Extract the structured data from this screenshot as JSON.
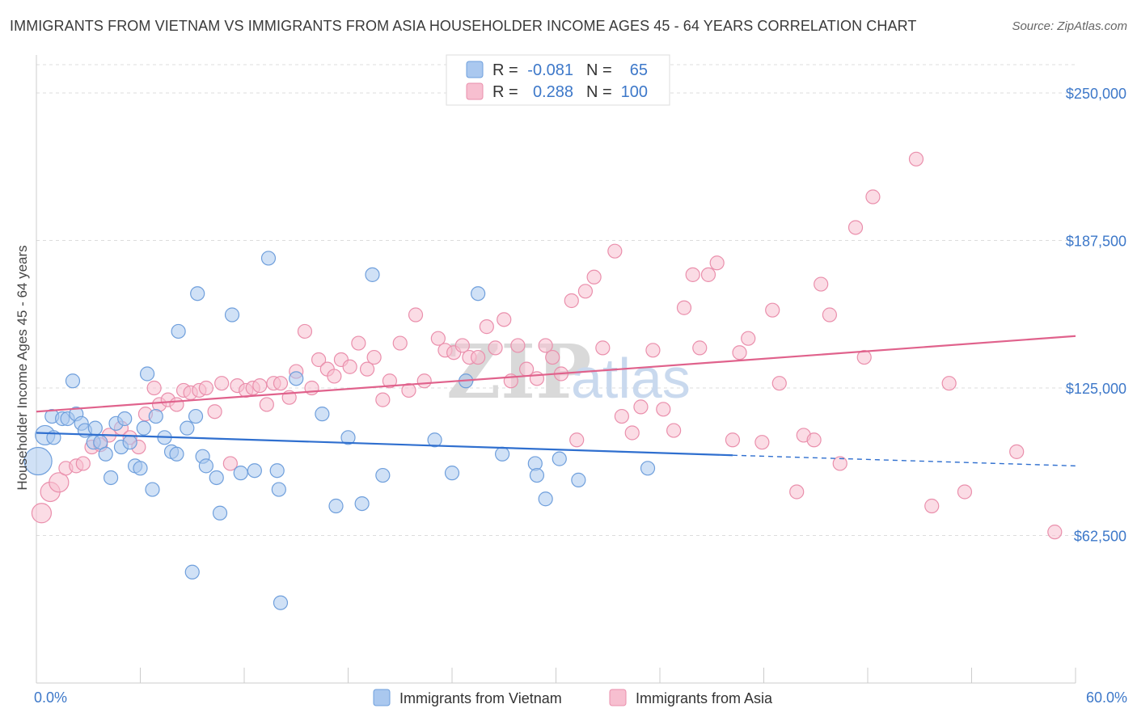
{
  "title": "IMMIGRANTS FROM VIETNAM VS IMMIGRANTS FROM ASIA HOUSEHOLDER INCOME AGES 45 - 64 YEARS CORRELATION CHART",
  "source": "Source: ZipAtlas.com",
  "watermark": {
    "zip": "ZIP",
    "atlas": "atlas"
  },
  "legend": {
    "rows": [
      {
        "r_label": "R =",
        "r_value": "-0.081",
        "n_label": "N =",
        "n_value": "65"
      },
      {
        "r_label": "R =",
        "r_value": "0.288",
        "n_label": "N =",
        "n_value": "100"
      }
    ]
  },
  "colors": {
    "vietnam_fill": "#aac8ef",
    "vietnam_stroke": "#6f9fdc",
    "vietnam_line": "#2f6fcf",
    "asia_fill": "#f7bfd0",
    "asia_stroke": "#ea8fac",
    "asia_line": "#e0628c",
    "grid": "#dddddd",
    "tick_label": "#3d78c9"
  },
  "chart_data": {
    "type": "scatter",
    "title": "IMMIGRANTS FROM VIETNAM VS IMMIGRANTS FROM ASIA HOUSEHOLDER INCOME AGES 45 - 64 YEARS CORRELATION CHART",
    "xlabel": "",
    "ylabel": "Householder Income Ages 45 - 64 years",
    "xlim": [
      0,
      60
    ],
    "ylim": [
      0,
      262000
    ],
    "x_tick_labels": [
      "0.0%",
      "60.0%"
    ],
    "y_ticks": [
      62500,
      125000,
      187500,
      250000
    ],
    "y_tick_labels": [
      "$62,500",
      "$125,000",
      "$187,500",
      "$250,000"
    ],
    "grid": true,
    "legend_position": "top-center",
    "series": [
      {
        "name": "Immigrants from Vietnam",
        "trend": {
          "x": [
            0,
            40.2
          ],
          "y": [
            106000,
            96500
          ],
          "dashed_extension_to": [
            60,
            92000
          ]
        },
        "points": [
          {
            "x": 0.1,
            "y": 94000,
            "s": 3
          },
          {
            "x": 0.5,
            "y": 105000,
            "s": 2
          },
          {
            "x": 1.0,
            "y": 104000,
            "s": 1
          },
          {
            "x": 0.9,
            "y": 113000,
            "s": 1
          },
          {
            "x": 1.5,
            "y": 112000,
            "s": 1
          },
          {
            "x": 1.8,
            "y": 112000,
            "s": 1
          },
          {
            "x": 2.1,
            "y": 128000,
            "s": 1
          },
          {
            "x": 2.3,
            "y": 114000,
            "s": 1
          },
          {
            "x": 2.6,
            "y": 110000,
            "s": 1
          },
          {
            "x": 2.8,
            "y": 107000,
            "s": 1
          },
          {
            "x": 3.4,
            "y": 108000,
            "s": 1
          },
          {
            "x": 3.3,
            "y": 102000,
            "s": 1
          },
          {
            "x": 3.7,
            "y": 102000,
            "s": 1
          },
          {
            "x": 4.0,
            "y": 97000,
            "s": 1
          },
          {
            "x": 4.3,
            "y": 87000,
            "s": 1
          },
          {
            "x": 4.6,
            "y": 110000,
            "s": 1
          },
          {
            "x": 4.9,
            "y": 100000,
            "s": 1
          },
          {
            "x": 5.1,
            "y": 112000,
            "s": 1
          },
          {
            "x": 5.4,
            "y": 102000,
            "s": 1
          },
          {
            "x": 5.7,
            "y": 92000,
            "s": 1
          },
          {
            "x": 6.0,
            "y": 91000,
            "s": 1
          },
          {
            "x": 6.2,
            "y": 108000,
            "s": 1
          },
          {
            "x": 6.4,
            "y": 131000,
            "s": 1
          },
          {
            "x": 6.7,
            "y": 82000,
            "s": 1
          },
          {
            "x": 6.9,
            "y": 113000,
            "s": 1
          },
          {
            "x": 7.4,
            "y": 104000,
            "s": 1
          },
          {
            "x": 7.8,
            "y": 98000,
            "s": 1
          },
          {
            "x": 8.1,
            "y": 97000,
            "s": 1
          },
          {
            "x": 8.2,
            "y": 149000,
            "s": 1
          },
          {
            "x": 8.7,
            "y": 108000,
            "s": 1
          },
          {
            "x": 9.0,
            "y": 47000,
            "s": 1
          },
          {
            "x": 9.2,
            "y": 113000,
            "s": 1
          },
          {
            "x": 9.3,
            "y": 165000,
            "s": 1
          },
          {
            "x": 9.6,
            "y": 96000,
            "s": 1
          },
          {
            "x": 9.8,
            "y": 92000,
            "s": 1
          },
          {
            "x": 10.4,
            "y": 87000,
            "s": 1
          },
          {
            "x": 10.6,
            "y": 72000,
            "s": 1
          },
          {
            "x": 11.3,
            "y": 156000,
            "s": 1
          },
          {
            "x": 11.8,
            "y": 89000,
            "s": 1
          },
          {
            "x": 12.6,
            "y": 90000,
            "s": 1
          },
          {
            "x": 13.4,
            "y": 180000,
            "s": 1
          },
          {
            "x": 13.9,
            "y": 90000,
            "s": 1
          },
          {
            "x": 14.0,
            "y": 82000,
            "s": 1
          },
          {
            "x": 14.1,
            "y": 34000,
            "s": 1
          },
          {
            "x": 15.0,
            "y": 129000,
            "s": 1
          },
          {
            "x": 16.5,
            "y": 114000,
            "s": 1
          },
          {
            "x": 17.3,
            "y": 75000,
            "s": 1
          },
          {
            "x": 18.0,
            "y": 104000,
            "s": 1
          },
          {
            "x": 18.8,
            "y": 76000,
            "s": 1
          },
          {
            "x": 19.4,
            "y": 173000,
            "s": 1
          },
          {
            "x": 20.0,
            "y": 88000,
            "s": 1
          },
          {
            "x": 23.0,
            "y": 103000,
            "s": 1
          },
          {
            "x": 24.0,
            "y": 89000,
            "s": 1
          },
          {
            "x": 24.8,
            "y": 128000,
            "s": 1
          },
          {
            "x": 25.5,
            "y": 165000,
            "s": 1
          },
          {
            "x": 26.9,
            "y": 97000,
            "s": 1
          },
          {
            "x": 28.8,
            "y": 93000,
            "s": 1
          },
          {
            "x": 28.9,
            "y": 88000,
            "s": 1
          },
          {
            "x": 29.4,
            "y": 78000,
            "s": 1
          },
          {
            "x": 30.2,
            "y": 95000,
            "s": 1
          },
          {
            "x": 31.3,
            "y": 86000,
            "s": 1
          },
          {
            "x": 35.3,
            "y": 91000,
            "s": 1
          }
        ]
      },
      {
        "name": "Immigrants from Asia",
        "trend": {
          "x": [
            0,
            60
          ],
          "y": [
            115000,
            147000
          ]
        },
        "points": [
          {
            "x": 0.3,
            "y": 72000,
            "s": 2
          },
          {
            "x": 0.8,
            "y": 81000,
            "s": 2
          },
          {
            "x": 1.3,
            "y": 85000,
            "s": 2
          },
          {
            "x": 1.7,
            "y": 91000,
            "s": 1
          },
          {
            "x": 2.3,
            "y": 92000,
            "s": 1
          },
          {
            "x": 2.7,
            "y": 93000,
            "s": 1
          },
          {
            "x": 3.2,
            "y": 100000,
            "s": 1
          },
          {
            "x": 3.7,
            "y": 101000,
            "s": 1
          },
          {
            "x": 4.2,
            "y": 105000,
            "s": 1
          },
          {
            "x": 4.9,
            "y": 108000,
            "s": 1
          },
          {
            "x": 5.4,
            "y": 104000,
            "s": 1
          },
          {
            "x": 5.9,
            "y": 100000,
            "s": 1
          },
          {
            "x": 6.3,
            "y": 114000,
            "s": 1
          },
          {
            "x": 6.8,
            "y": 125000,
            "s": 1
          },
          {
            "x": 7.1,
            "y": 118000,
            "s": 1
          },
          {
            "x": 7.6,
            "y": 120000,
            "s": 1
          },
          {
            "x": 8.1,
            "y": 118000,
            "s": 1
          },
          {
            "x": 8.5,
            "y": 124000,
            "s": 1
          },
          {
            "x": 8.9,
            "y": 123000,
            "s": 1
          },
          {
            "x": 9.4,
            "y": 124000,
            "s": 1
          },
          {
            "x": 9.8,
            "y": 125000,
            "s": 1
          },
          {
            "x": 10.3,
            "y": 115000,
            "s": 1
          },
          {
            "x": 10.7,
            "y": 127000,
            "s": 1
          },
          {
            "x": 11.2,
            "y": 93000,
            "s": 1
          },
          {
            "x": 11.6,
            "y": 126000,
            "s": 1
          },
          {
            "x": 12.1,
            "y": 124000,
            "s": 1
          },
          {
            "x": 12.5,
            "y": 125000,
            "s": 1
          },
          {
            "x": 12.9,
            "y": 126000,
            "s": 1
          },
          {
            "x": 13.3,
            "y": 118000,
            "s": 1
          },
          {
            "x": 13.7,
            "y": 127000,
            "s": 1
          },
          {
            "x": 14.1,
            "y": 127000,
            "s": 1
          },
          {
            "x": 14.6,
            "y": 121000,
            "s": 1
          },
          {
            "x": 15.0,
            "y": 132000,
            "s": 1
          },
          {
            "x": 15.5,
            "y": 149000,
            "s": 1
          },
          {
            "x": 15.9,
            "y": 125000,
            "s": 1
          },
          {
            "x": 16.3,
            "y": 137000,
            "s": 1
          },
          {
            "x": 16.8,
            "y": 133000,
            "s": 1
          },
          {
            "x": 17.2,
            "y": 130000,
            "s": 1
          },
          {
            "x": 17.6,
            "y": 137000,
            "s": 1
          },
          {
            "x": 18.1,
            "y": 134000,
            "s": 1
          },
          {
            "x": 18.6,
            "y": 144000,
            "s": 1
          },
          {
            "x": 19.1,
            "y": 133000,
            "s": 1
          },
          {
            "x": 19.5,
            "y": 138000,
            "s": 1
          },
          {
            "x": 20.0,
            "y": 120000,
            "s": 1
          },
          {
            "x": 20.4,
            "y": 128000,
            "s": 1
          },
          {
            "x": 21.0,
            "y": 144000,
            "s": 1
          },
          {
            "x": 21.5,
            "y": 124000,
            "s": 1
          },
          {
            "x": 21.9,
            "y": 156000,
            "s": 1
          },
          {
            "x": 22.4,
            "y": 128000,
            "s": 1
          },
          {
            "x": 23.2,
            "y": 146000,
            "s": 1
          },
          {
            "x": 23.6,
            "y": 141000,
            "s": 1
          },
          {
            "x": 24.1,
            "y": 140000,
            "s": 1
          },
          {
            "x": 24.6,
            "y": 143000,
            "s": 1
          },
          {
            "x": 25.0,
            "y": 138000,
            "s": 1
          },
          {
            "x": 25.5,
            "y": 138000,
            "s": 1
          },
          {
            "x": 26.0,
            "y": 151000,
            "s": 1
          },
          {
            "x": 26.5,
            "y": 142000,
            "s": 1
          },
          {
            "x": 27.0,
            "y": 154000,
            "s": 1
          },
          {
            "x": 27.4,
            "y": 128000,
            "s": 1
          },
          {
            "x": 27.8,
            "y": 143000,
            "s": 1
          },
          {
            "x": 28.3,
            "y": 133000,
            "s": 1
          },
          {
            "x": 28.9,
            "y": 129000,
            "s": 1
          },
          {
            "x": 29.4,
            "y": 143000,
            "s": 1
          },
          {
            "x": 29.8,
            "y": 138000,
            "s": 1
          },
          {
            "x": 30.3,
            "y": 131000,
            "s": 1
          },
          {
            "x": 30.9,
            "y": 162000,
            "s": 1
          },
          {
            "x": 31.2,
            "y": 103000,
            "s": 1
          },
          {
            "x": 31.7,
            "y": 166000,
            "s": 1
          },
          {
            "x": 32.2,
            "y": 172000,
            "s": 1
          },
          {
            "x": 32.7,
            "y": 142000,
            "s": 1
          },
          {
            "x": 33.4,
            "y": 183000,
            "s": 1
          },
          {
            "x": 33.8,
            "y": 113000,
            "s": 1
          },
          {
            "x": 34.4,
            "y": 106000,
            "s": 1
          },
          {
            "x": 34.9,
            "y": 117000,
            "s": 1
          },
          {
            "x": 35.6,
            "y": 141000,
            "s": 1
          },
          {
            "x": 36.2,
            "y": 116000,
            "s": 1
          },
          {
            "x": 36.8,
            "y": 107000,
            "s": 1
          },
          {
            "x": 37.4,
            "y": 159000,
            "s": 1
          },
          {
            "x": 37.9,
            "y": 173000,
            "s": 1
          },
          {
            "x": 38.3,
            "y": 142000,
            "s": 1
          },
          {
            "x": 38.8,
            "y": 173000,
            "s": 1
          },
          {
            "x": 39.3,
            "y": 178000,
            "s": 1
          },
          {
            "x": 40.2,
            "y": 103000,
            "s": 1
          },
          {
            "x": 40.6,
            "y": 140000,
            "s": 1
          },
          {
            "x": 41.1,
            "y": 146000,
            "s": 1
          },
          {
            "x": 41.9,
            "y": 102000,
            "s": 1
          },
          {
            "x": 42.5,
            "y": 158000,
            "s": 1
          },
          {
            "x": 42.9,
            "y": 127000,
            "s": 1
          },
          {
            "x": 43.9,
            "y": 81000,
            "s": 1
          },
          {
            "x": 44.3,
            "y": 105000,
            "s": 1
          },
          {
            "x": 44.9,
            "y": 103000,
            "s": 1
          },
          {
            "x": 45.3,
            "y": 169000,
            "s": 1
          },
          {
            "x": 45.8,
            "y": 156000,
            "s": 1
          },
          {
            "x": 46.4,
            "y": 93000,
            "s": 1
          },
          {
            "x": 47.3,
            "y": 193000,
            "s": 1
          },
          {
            "x": 47.8,
            "y": 138000,
            "s": 1
          },
          {
            "x": 48.3,
            "y": 206000,
            "s": 1
          },
          {
            "x": 50.8,
            "y": 222000,
            "s": 1
          },
          {
            "x": 51.7,
            "y": 75000,
            "s": 1
          },
          {
            "x": 52.7,
            "y": 127000,
            "s": 1
          },
          {
            "x": 53.6,
            "y": 81000,
            "s": 1
          },
          {
            "x": 56.6,
            "y": 98000,
            "s": 1
          },
          {
            "x": 58.8,
            "y": 64000,
            "s": 1
          }
        ]
      }
    ]
  }
}
